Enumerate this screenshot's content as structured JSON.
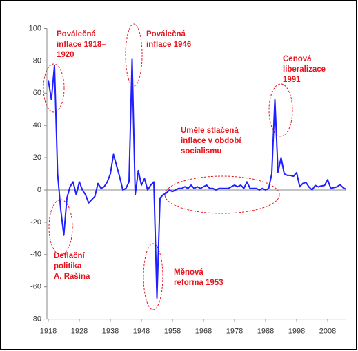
{
  "chart_data": {
    "type": "line",
    "x": [
      1918,
      1919,
      1920,
      1921,
      1922,
      1923,
      1924,
      1925,
      1926,
      1927,
      1928,
      1929,
      1930,
      1931,
      1932,
      1933,
      1934,
      1935,
      1936,
      1937,
      1938,
      1939,
      1940,
      1941,
      1942,
      1943,
      1944,
      1945,
      1946,
      1947,
      1948,
      1949,
      1950,
      1951,
      1952,
      1953,
      1954,
      1955,
      1956,
      1957,
      1958,
      1959,
      1960,
      1961,
      1962,
      1963,
      1964,
      1965,
      1966,
      1967,
      1968,
      1969,
      1970,
      1971,
      1972,
      1973,
      1974,
      1975,
      1976,
      1977,
      1978,
      1979,
      1980,
      1981,
      1982,
      1983,
      1984,
      1985,
      1986,
      1987,
      1988,
      1989,
      1990,
      1991,
      1992,
      1993,
      1994,
      1995,
      1996,
      1997,
      1998,
      1999,
      2000,
      2001,
      2002,
      2003,
      2004,
      2005,
      2006,
      2007,
      2008,
      2009,
      2010,
      2011,
      2012,
      2013,
      2014
    ],
    "series": [
      {
        "color": "#1f1fff",
        "values": [
          68,
          56,
          77,
          10,
          -12,
          -28,
          -5,
          2,
          5,
          -3,
          5,
          0,
          -3,
          -8,
          -6,
          -4,
          4,
          1,
          2,
          5,
          10,
          22,
          15,
          8,
          0,
          1,
          5,
          81,
          -3,
          12,
          3,
          7,
          0,
          3,
          5,
          -67,
          -5,
          -3,
          -2,
          0,
          -1,
          0,
          1,
          1,
          2,
          1,
          3,
          1,
          2,
          1,
          2,
          3,
          1,
          1,
          0,
          1,
          1,
          1,
          1,
          2,
          3,
          2,
          3,
          1,
          5,
          1,
          1,
          1,
          0,
          1,
          0,
          1,
          10,
          56,
          11,
          20,
          10,
          9,
          9,
          8.5,
          10.7,
          2,
          4,
          4.7,
          1.8,
          0.1,
          2.8,
          1.9,
          2.5,
          2.8,
          6.3,
          1,
          1.5,
          1.9,
          3.3,
          1.4,
          0.4
        ]
      }
    ],
    "xlim": [
      1918,
      2014
    ],
    "xticks": [
      1918,
      1928,
      1938,
      1948,
      1958,
      1968,
      1978,
      1988,
      1998,
      2008
    ],
    "ylim": [
      -80,
      100
    ],
    "yticks": [
      100,
      80,
      60,
      40,
      20,
      0,
      -20,
      -40,
      -60,
      -80
    ],
    "annotations": [
      {
        "lines": [
          "Poválečná",
          "inflace 1918–",
          "1920"
        ]
      },
      {
        "lines": [
          "Poválečná",
          "inflace 1946"
        ]
      },
      {
        "lines": [
          "Cenová",
          "liberalizace",
          "1991"
        ]
      },
      {
        "lines": [
          "Uměle stlačená",
          "inflace v období",
          "socialismu"
        ]
      },
      {
        "lines": [
          "Deflační",
          "politika",
          "A. Rašína"
        ]
      },
      {
        "lines": [
          "Měnová",
          "reforma 1953"
        ]
      }
    ]
  }
}
